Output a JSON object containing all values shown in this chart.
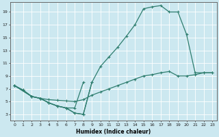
{
  "xlabel": "Humidex (Indice chaleur)",
  "bg_color": "#cce8f0",
  "line_color": "#2e7d6e",
  "grid_color": "#ffffff",
  "xlim": [
    -0.5,
    23.5
  ],
  "ylim": [
    2,
    20.5
  ],
  "xticks": [
    0,
    1,
    2,
    3,
    4,
    5,
    6,
    7,
    8,
    9,
    10,
    11,
    12,
    13,
    14,
    15,
    16,
    17,
    18,
    19,
    20,
    21,
    22,
    23
  ],
  "yticks": [
    3,
    5,
    7,
    9,
    11,
    13,
    15,
    17,
    19
  ],
  "line_upper_x": [
    0,
    1,
    2,
    3,
    4,
    5,
    6,
    7,
    8,
    9,
    10,
    11,
    12,
    13,
    14,
    15,
    16,
    17,
    18,
    19,
    20,
    21,
    22,
    23
  ],
  "line_upper_y": [
    7.5,
    6.8,
    5.8,
    5.5,
    4.8,
    4.3,
    4.0,
    3.2,
    3.0,
    8.0,
    10.5,
    12.0,
    13.5,
    15.2,
    17.0,
    19.5,
    19.8,
    20.0,
    19.0,
    19.0,
    15.5,
    9.5,
    9.5,
    9.5
  ],
  "line_mid_x": [
    0,
    1,
    2,
    3,
    4,
    5,
    6,
    7,
    8,
    9,
    10,
    11,
    12,
    13,
    14,
    15,
    16,
    17,
    18,
    19,
    20,
    21,
    22,
    23
  ],
  "line_mid_y": [
    7.5,
    6.8,
    5.8,
    5.5,
    4.8,
    4.3,
    4.0,
    3.2,
    3.0,
    8.0,
    null,
    null,
    null,
    null,
    null,
    null,
    null,
    null,
    null,
    null,
    null,
    null,
    null,
    null
  ],
  "line_low2_x": [
    0,
    2,
    3,
    4,
    5,
    6,
    7,
    8,
    9,
    10,
    11,
    12,
    13,
    14,
    15,
    16,
    17,
    18,
    19,
    20,
    21,
    22,
    23
  ],
  "line_low2_y": [
    7.5,
    5.8,
    5.5,
    5.3,
    5.2,
    5.1,
    5.0,
    5.3,
    6.0,
    6.5,
    7.0,
    7.5,
    8.0,
    8.5,
    9.0,
    9.2,
    9.5,
    9.7,
    9.0,
    9.0,
    9.2,
    9.5,
    9.5
  ],
  "line_low_x": [
    0,
    2,
    3,
    4,
    5,
    6,
    7,
    8
  ],
  "line_low_y": [
    7.5,
    5.8,
    5.5,
    4.8,
    4.3,
    4.0,
    4.0,
    8.0
  ]
}
